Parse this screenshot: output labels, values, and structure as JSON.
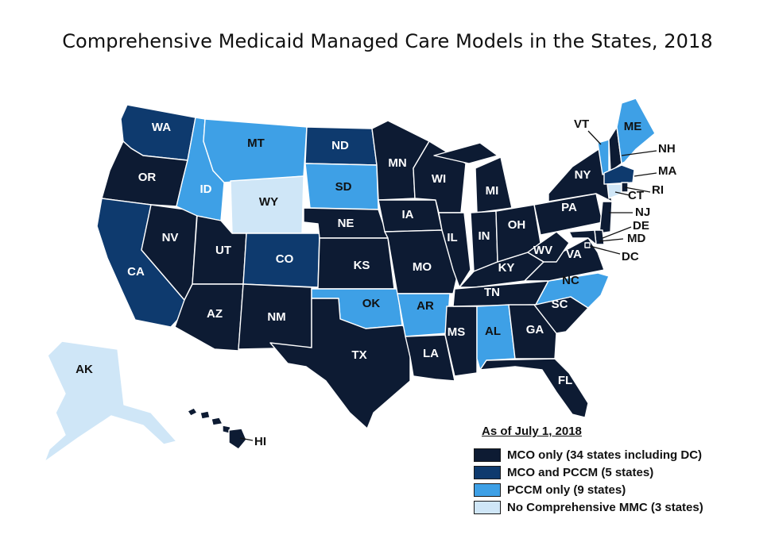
{
  "title": "Comprehensive Medicaid Managed Care Models in the States, 2018",
  "colors": {
    "mco_only": "#0d1b33",
    "mco_and_pccm": "#0e3a6e",
    "pccm_only": "#3ea0e6",
    "no_mmc": "#cfe6f7"
  },
  "legend": {
    "title": "As of July 1, 2018",
    "items": [
      {
        "key": "mco_only",
        "label": "MCO only (34 states including DC)"
      },
      {
        "key": "mco_and_pccm",
        "label": "MCO and PCCM (5 states)"
      },
      {
        "key": "pccm_only",
        "label": "PCCM only (9 states)"
      },
      {
        "key": "no_mmc",
        "label": "No Comprehensive MMC (3 states)"
      }
    ]
  },
  "states": {
    "WA": "mco_and_pccm",
    "OR": "mco_only",
    "CA": "mco_and_pccm",
    "NV": "mco_only",
    "ID": "pccm_only",
    "MT": "pccm_only",
    "WY": "no_mmc",
    "UT": "mco_only",
    "AZ": "mco_only",
    "CO": "mco_and_pccm",
    "NM": "mco_only",
    "ND": "mco_and_pccm",
    "SD": "pccm_only",
    "NE": "mco_only",
    "KS": "mco_only",
    "OK": "pccm_only",
    "TX": "mco_only",
    "MN": "mco_only",
    "IA": "mco_only",
    "MO": "mco_only",
    "AR": "pccm_only",
    "LA": "mco_only",
    "WI": "mco_only",
    "IL": "mco_only",
    "MS": "mco_only",
    "MI": "mco_only",
    "IN": "mco_only",
    "KY": "mco_only",
    "TN": "mco_only",
    "AL": "pccm_only",
    "OH": "mco_only",
    "GA": "mco_only",
    "FL": "mco_only",
    "SC": "mco_only",
    "NC": "pccm_only",
    "VA": "mco_only",
    "WV": "mco_only",
    "PA": "mco_only",
    "NY": "mco_only",
    "ME": "pccm_only",
    "VT": "pccm_only",
    "NH": "mco_only",
    "MA": "mco_and_pccm",
    "RI": "mco_only",
    "CT": "no_mmc",
    "NJ": "mco_only",
    "DE": "mco_only",
    "MD": "mco_only",
    "DC": "mco_only",
    "AK": "no_mmc",
    "HI": "mco_only"
  },
  "labels": {
    "WA": "WA",
    "OR": "OR",
    "CA": "CA",
    "NV": "NV",
    "ID": "ID",
    "MT": "MT",
    "WY": "WY",
    "UT": "UT",
    "AZ": "AZ",
    "CO": "CO",
    "NM": "NM",
    "ND": "ND",
    "SD": "SD",
    "NE": "NE",
    "KS": "KS",
    "OK": "OK",
    "TX": "TX",
    "MN": "MN",
    "IA": "IA",
    "MO": "MO",
    "AR": "AR",
    "LA": "LA",
    "WI": "WI",
    "IL": "IL",
    "MS": "MS",
    "MI": "MI",
    "IN": "IN",
    "KY": "KY",
    "TN": "TN",
    "AL": "AL",
    "OH": "OH",
    "GA": "GA",
    "FL": "FL",
    "SC": "SC",
    "NC": "NC",
    "VA": "VA",
    "WV": "WV",
    "PA": "PA",
    "NY": "NY",
    "ME": "ME",
    "VT": "VT",
    "NH": "NH",
    "MA": "MA",
    "RI": "RI",
    "CT": "CT",
    "NJ": "NJ",
    "DE": "DE",
    "MD": "MD",
    "DC": "DC",
    "AK": "AK",
    "HI": "HI"
  }
}
